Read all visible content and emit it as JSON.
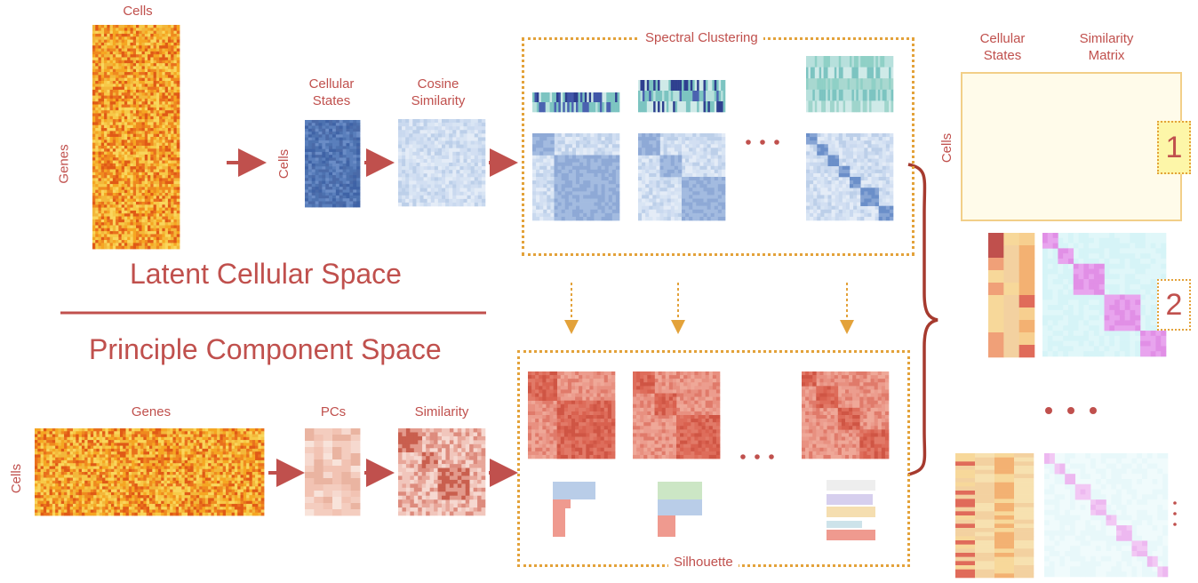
{
  "top_left": {
    "cells_label": "Cells",
    "genes_label": "Genes"
  },
  "top_middle": {
    "cellular_states": "Cellular\nStates",
    "cosine_similarity": "Cosine\nSimilarity",
    "cells_label": "Cells"
  },
  "section_titles": {
    "latent": "Latent Cellular Space",
    "pca": "Principle Component Space"
  },
  "bottom_left": {
    "genes_label": "Genes",
    "cells_label": "Cells",
    "pcs_label": "PCs",
    "similarity_label": "Similarity"
  },
  "spectral_box": {
    "title": "Spectral Clustering"
  },
  "silhouette_box": {
    "title": "Silhouette"
  },
  "right_panel": {
    "cellular_states": "Cellular\nStates",
    "similarity_matrix": "Similarity\nMatrix",
    "cells_label": "Cells",
    "rank1": "1",
    "rank2": "2"
  },
  "colors": {
    "label": "#c0504d",
    "dots": "#e3a23a",
    "arrow": "#c0504d",
    "blue_dark": "#3f63a6",
    "blue_light": "#dce7f5",
    "red": "#e06b5a",
    "orange": "#f0a030",
    "magenta": "#e38ae8",
    "cyan": "#d6f4f7"
  }
}
